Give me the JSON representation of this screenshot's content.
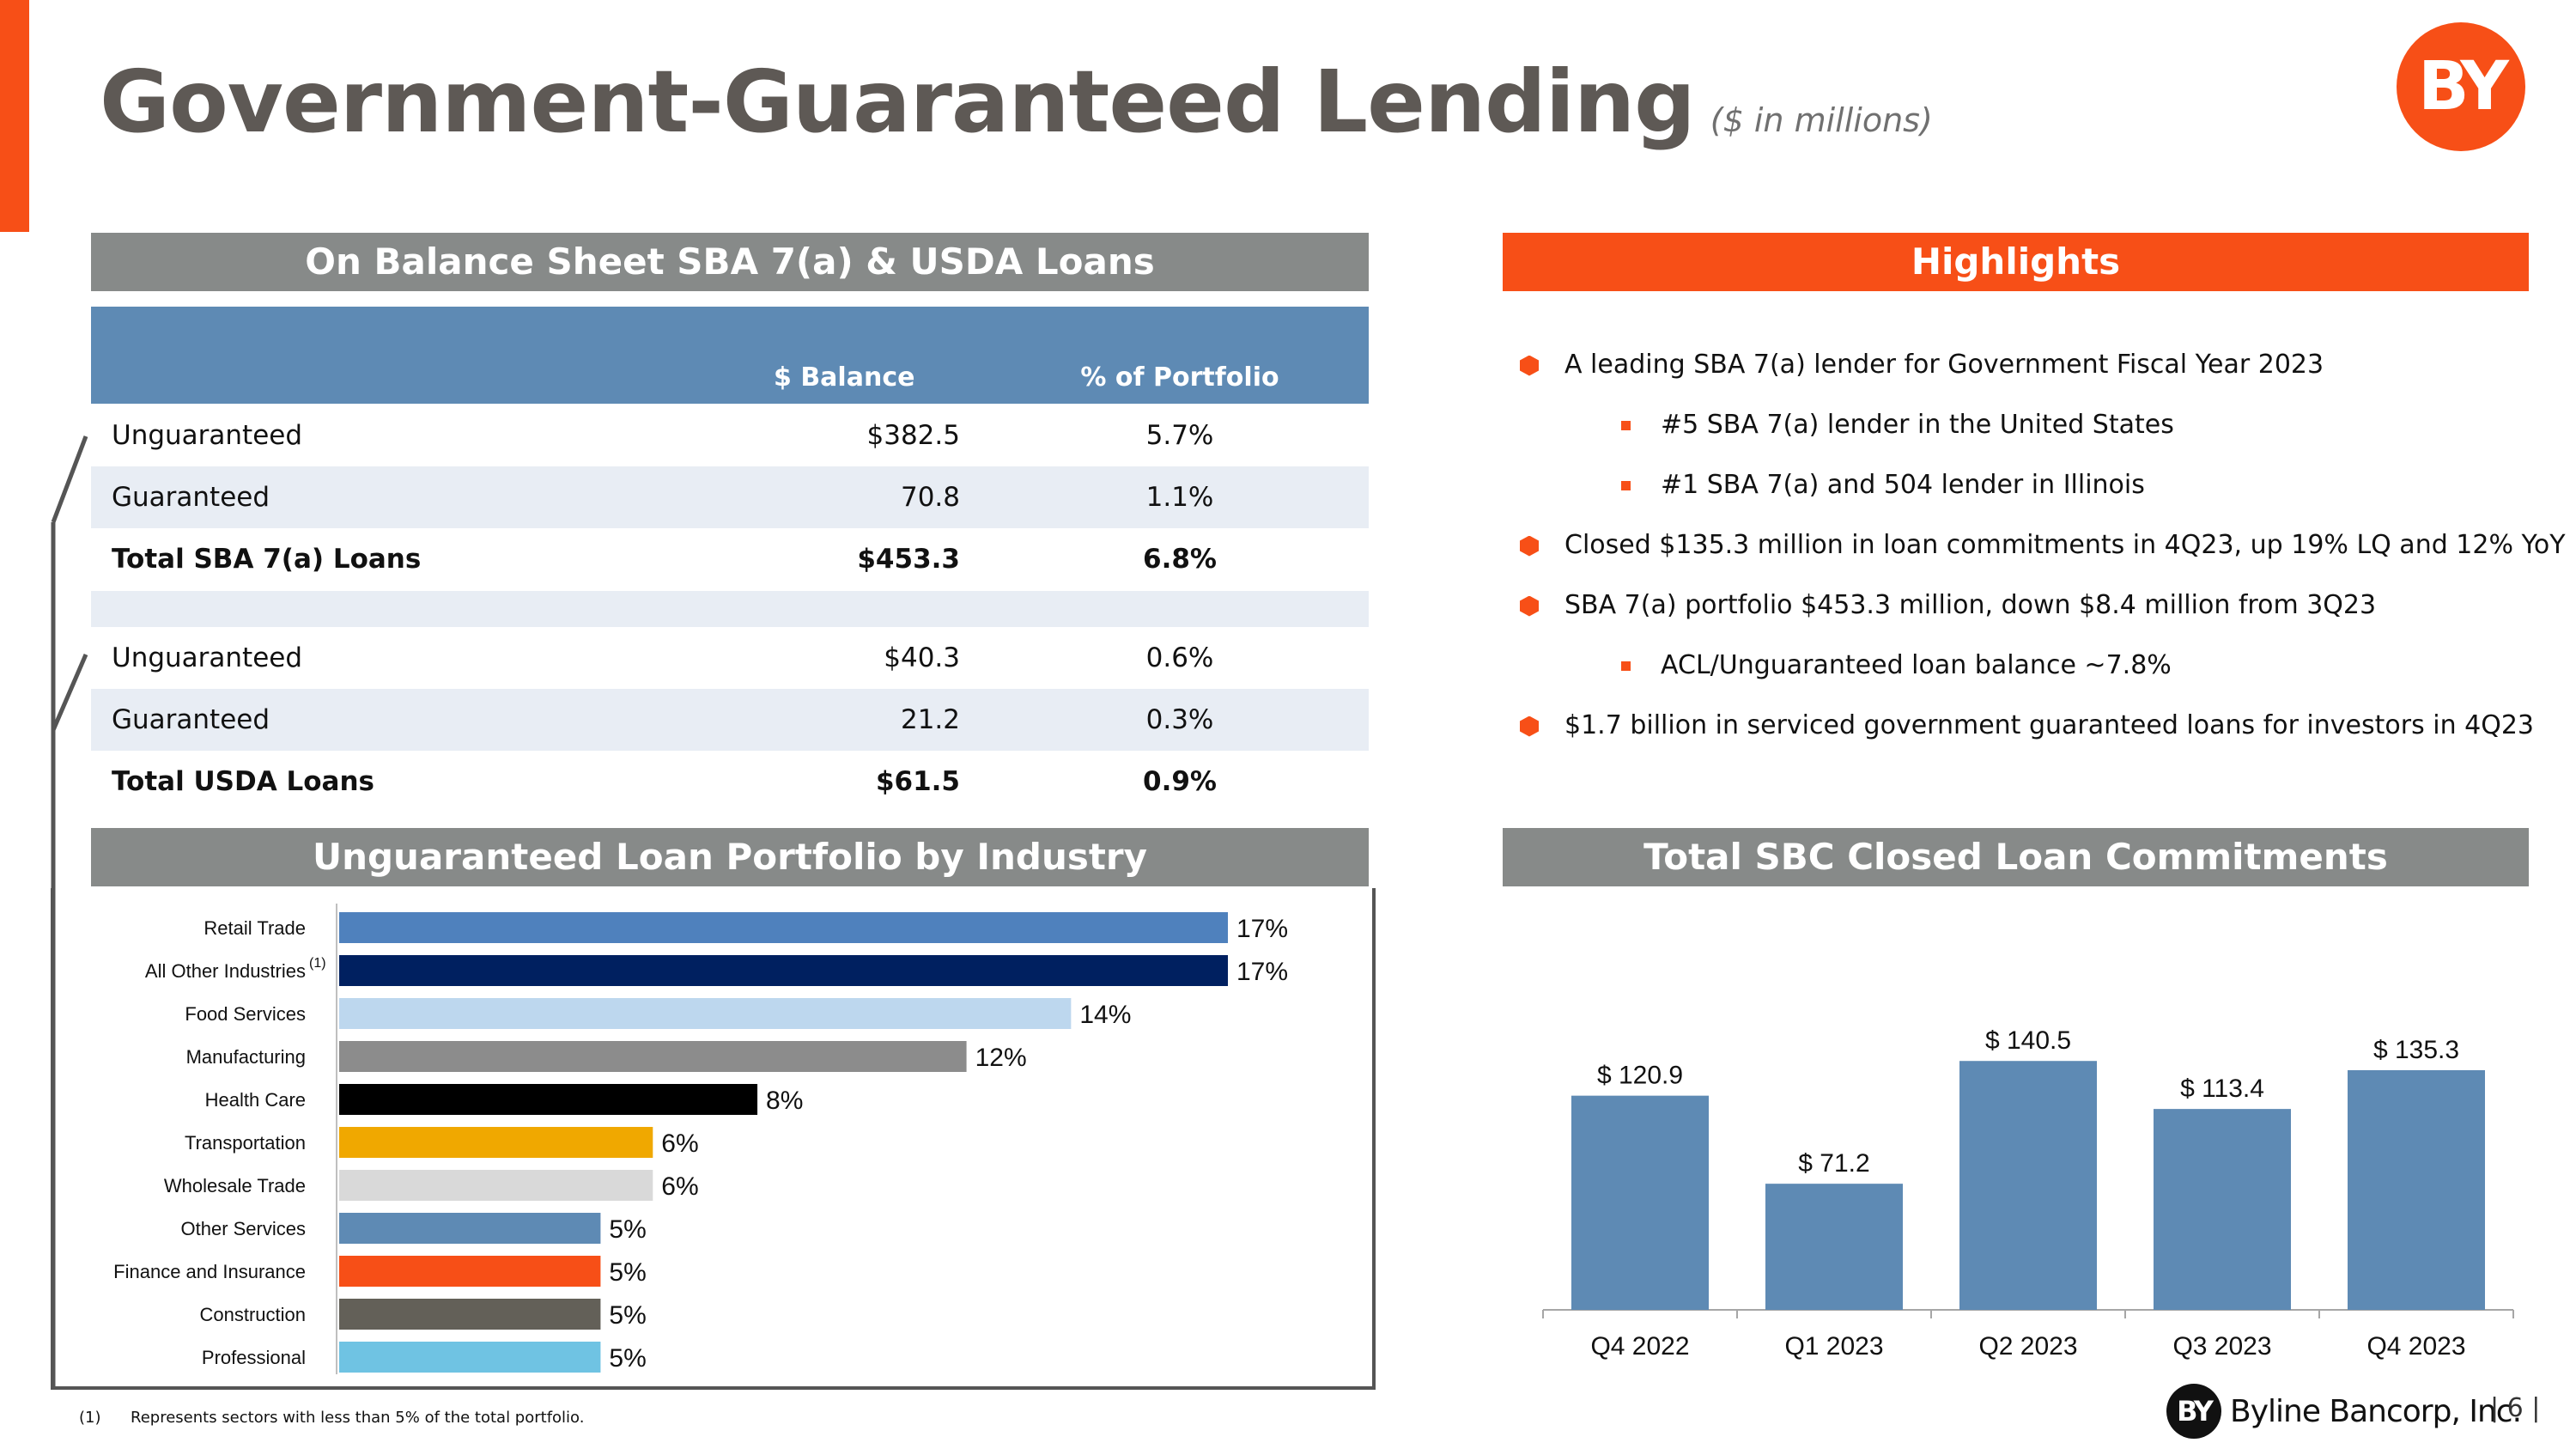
{
  "title": "Government-Guaranteed Lending",
  "title_units": "($ in millions)",
  "logo_text": "BY",
  "sba_section": {
    "heading": "On Balance Sheet SBA 7(a) & USDA Loans",
    "col_balance": "$ Balance",
    "col_portfolio": "% of Portfolio",
    "sba_rows": [
      {
        "label": "Unguaranteed",
        "balance": "$382.5",
        "pct": "5.7%"
      },
      {
        "label": "Guaranteed",
        "balance": "70.8",
        "pct": "1.1%"
      },
      {
        "label": "Total SBA 7(a) Loans",
        "balance": "$453.3",
        "pct": "6.8%"
      }
    ],
    "usda_rows": [
      {
        "label": "Unguaranteed",
        "balance": "$40.3",
        "pct": "0.6%"
      },
      {
        "label": "Guaranteed",
        "balance": "21.2",
        "pct": "0.3%"
      },
      {
        "label": "Total USDA Loans",
        "balance": "$61.5",
        "pct": "0.9%"
      }
    ]
  },
  "highlights": {
    "heading": "Highlights",
    "items": [
      {
        "level": 1,
        "text": "A leading SBA 7(a) lender for Government Fiscal Year 2023"
      },
      {
        "level": 2,
        "text": "#5 SBA 7(a) lender in the United States"
      },
      {
        "level": 2,
        "text": "#1 SBA 7(a) and 504 lender in Illinois"
      },
      {
        "level": 1,
        "text": "Closed $135.3 million in loan commitments in 4Q23, up 19% LQ and 12% YoY"
      },
      {
        "level": 1,
        "text": "SBA 7(a) portfolio $453.3 million, down $8.4 million from 3Q23"
      },
      {
        "level": 2,
        "text": "ACL/Unguaranteed loan balance ~7.8%"
      },
      {
        "level": 1,
        "text": "$1.7 billion in serviced government guaranteed loans for investors in 4Q23"
      }
    ]
  },
  "industry_heading": "Unguaranteed Loan Portfolio by Industry",
  "commitments_heading": "Total SBC Closed Loan Commitments",
  "chart_data": [
    {
      "type": "bar",
      "orientation": "horizontal",
      "categories": [
        "Retail Trade",
        "All Other Industries",
        "Food Services",
        "Manufacturing",
        "Health Care",
        "Transportation",
        "Wholesale Trade",
        "Other Services",
        "Finance and Insurance",
        "Construction",
        "Professional"
      ],
      "category_notes": [
        "",
        "(1)",
        "",
        "",
        "",
        "",
        "",
        "",
        "",
        "",
        ""
      ],
      "values": [
        17,
        17,
        14,
        12,
        8,
        6,
        6,
        5,
        5,
        5,
        5
      ],
      "value_labels": [
        "17%",
        "17%",
        "14%",
        "12%",
        "8%",
        "6%",
        "6%",
        "5%",
        "5%",
        "5%",
        "5%"
      ],
      "colors": [
        "#4F81BD",
        "#002060",
        "#BDD7EE",
        "#8C8C8C",
        "#000000",
        "#F0A800",
        "#D9D9D9",
        "#5E8AB4",
        "#F74F17",
        "#636058",
        "#6FC3E3"
      ],
      "xlim": [
        0,
        17
      ],
      "grid": false,
      "legend": "none"
    },
    {
      "type": "bar",
      "categories": [
        "Q4 2022",
        "Q1 2023",
        "Q2 2023",
        "Q3 2023",
        "Q4 2023"
      ],
      "values": [
        120.9,
        71.2,
        140.5,
        113.4,
        135.3
      ],
      "value_labels": [
        "$ 120.9",
        "$ 71.2",
        "$ 140.5",
        "$ 113.4",
        "$ 135.3"
      ],
      "color": "#5E8AB4",
      "ylim": [
        0,
        160
      ],
      "grid": false,
      "legend": "none"
    }
  ],
  "footnote": {
    "marker": "(1)",
    "text": "Represents sectors with less than 5% of the total portfolio."
  },
  "footer": {
    "logo_mark": "BY",
    "company": "Byline Bancorp, Inc.",
    "page": "6"
  }
}
